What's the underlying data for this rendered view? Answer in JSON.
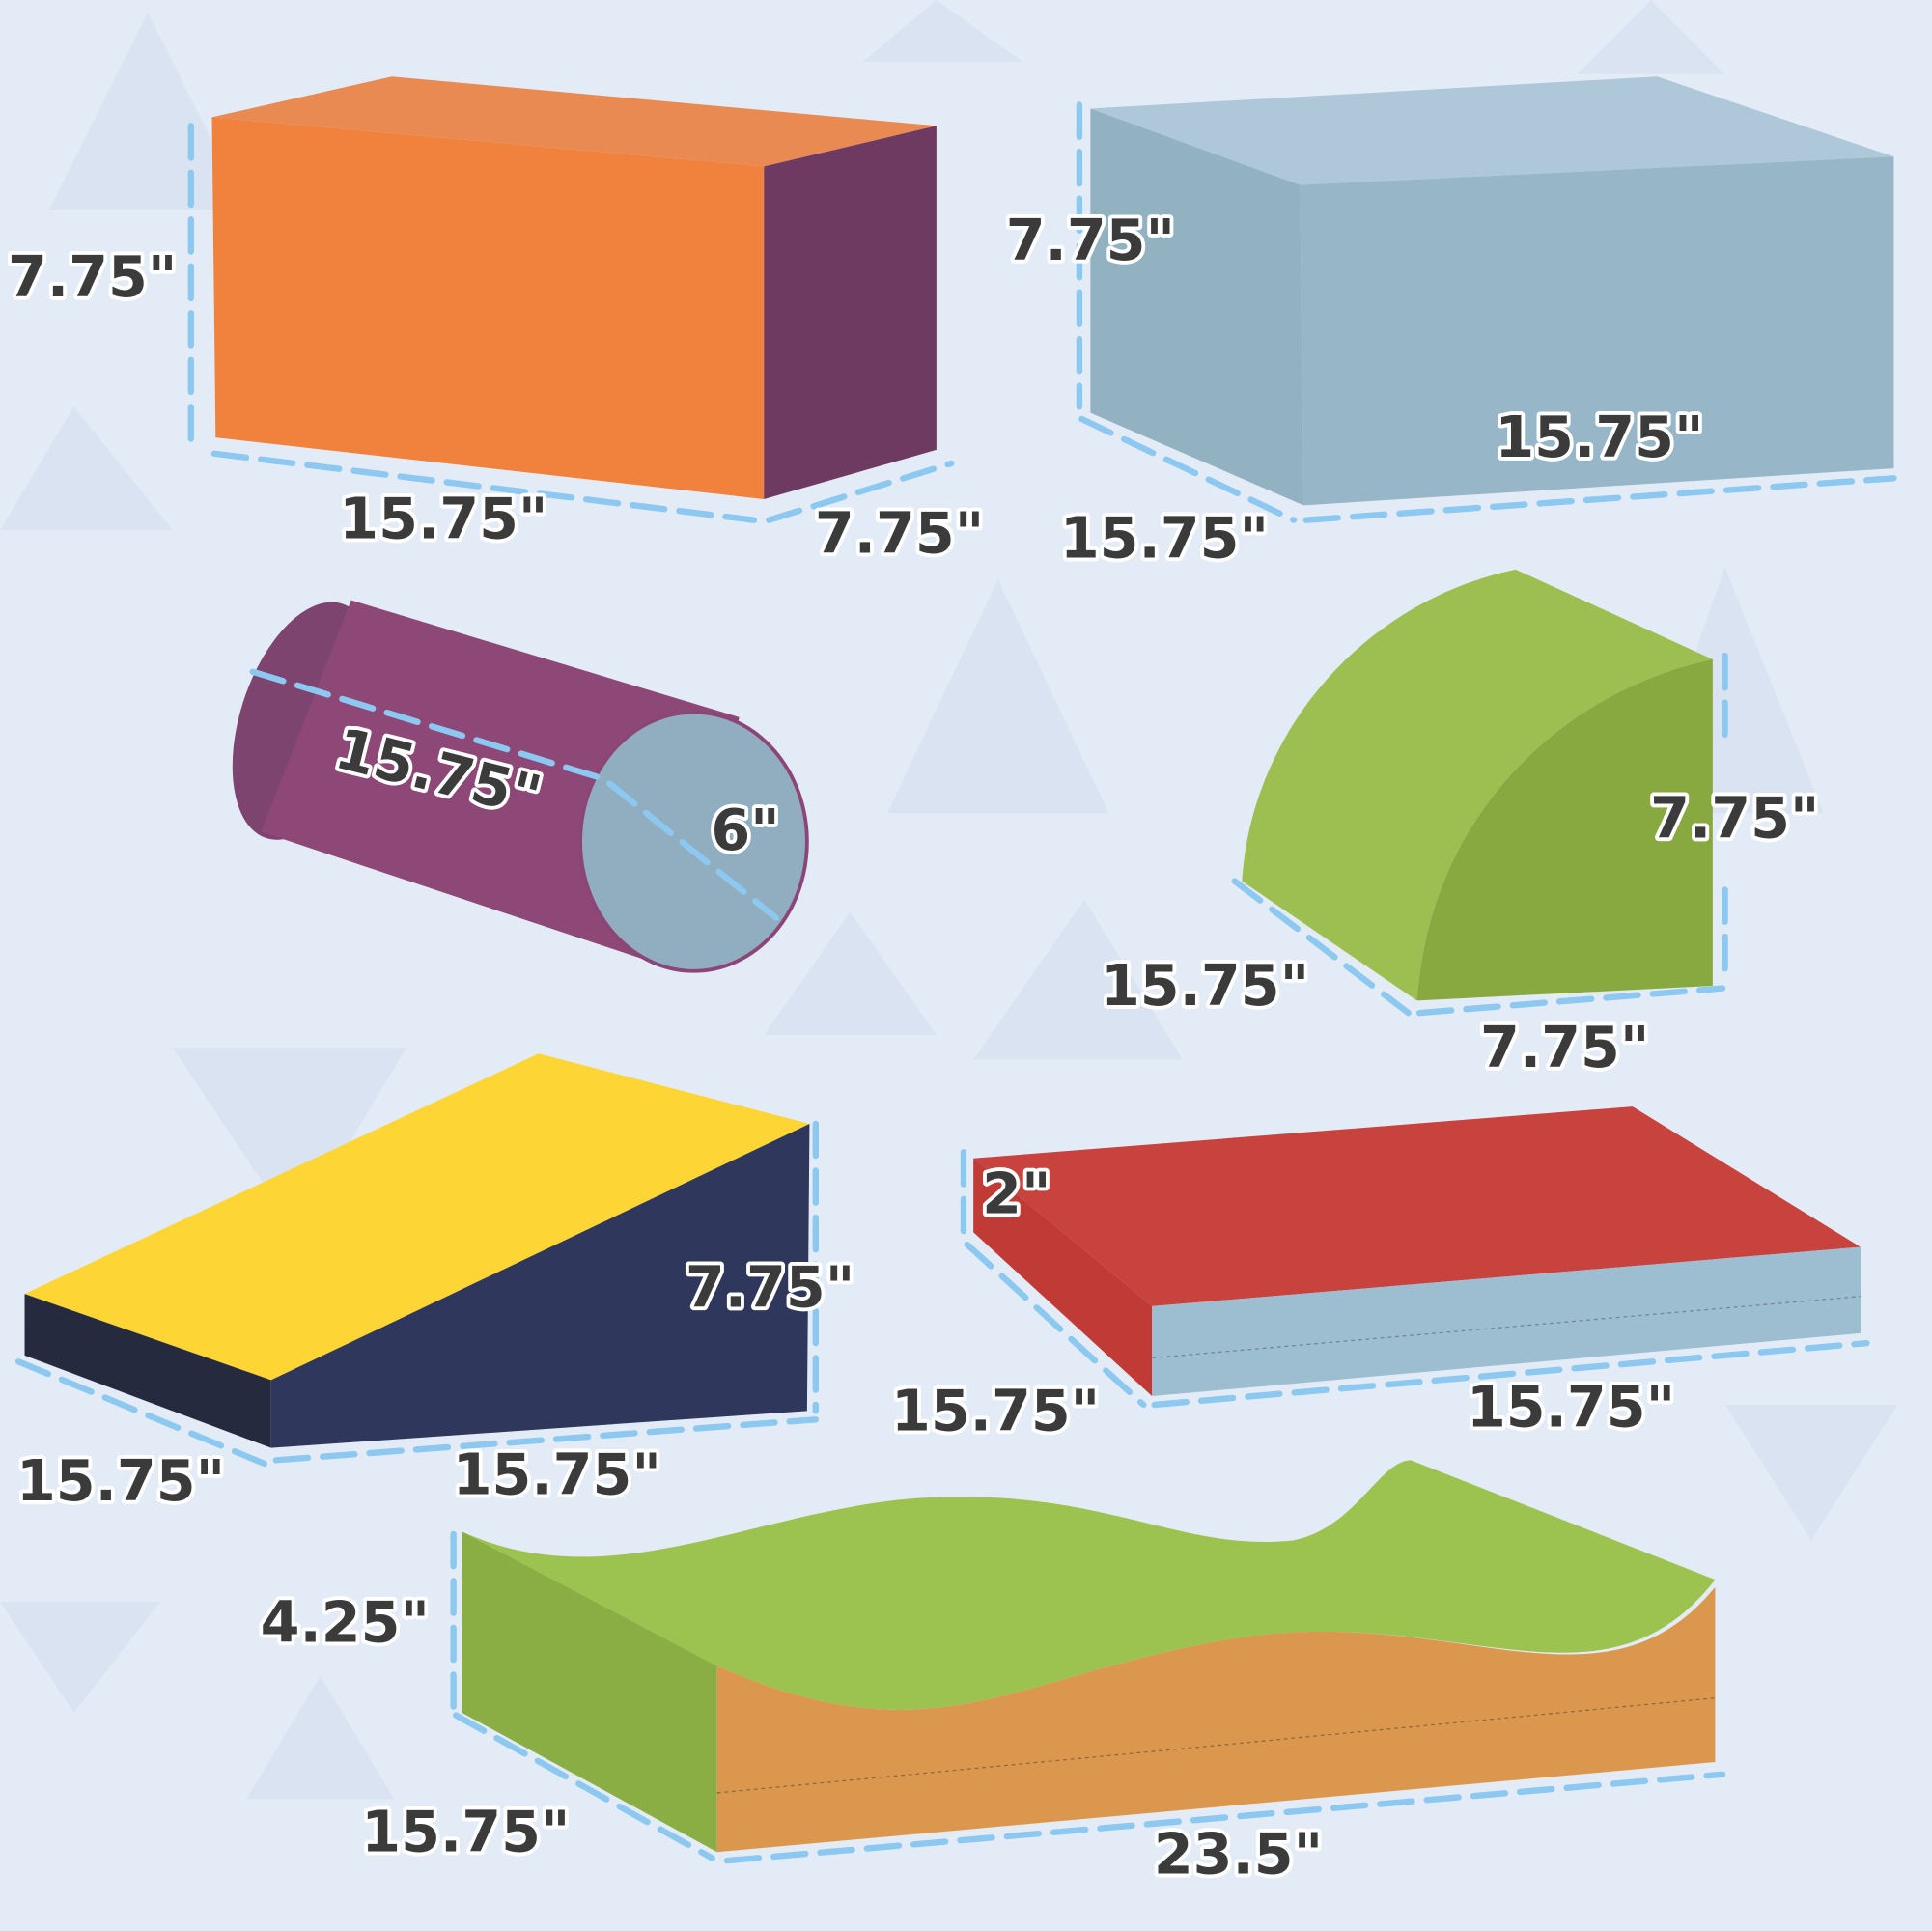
{
  "colors": {
    "background": "#e3ecf6",
    "dimension_line": "#8cc8ef",
    "label_text": "#3b3b3b"
  },
  "pieces": {
    "rectangle_block": {
      "height": "7.75\"",
      "length": "15.75\"",
      "width": "7.75\"",
      "colors": [
        "#f0823e",
        "#6e3a62"
      ]
    },
    "square_block": {
      "height": "7.75\"",
      "length": "15.75\"",
      "width": "15.75\"",
      "colors": [
        "#97b6c6"
      ]
    },
    "cylinder": {
      "length": "15.75\"",
      "diameter": "6\"",
      "colors": [
        "#8e4878",
        "#90aec0"
      ]
    },
    "quarter_round": {
      "height": "7.75\"",
      "length": "15.75\"",
      "width": "7.75\"",
      "colors": [
        "#8aab44"
      ]
    },
    "wedge": {
      "height": "7.75\"",
      "length": "15.75\"",
      "width": "15.75\"",
      "colors": [
        "#fdd535",
        "#2f375c"
      ]
    },
    "mat": {
      "height": "2\"",
      "length": "15.75\"",
      "width": "15.75\"",
      "colors": [
        "#c8423e",
        "#9dbdd0"
      ]
    },
    "wave_block": {
      "height": "4.25\"",
      "length": "15.75\"",
      "width": "23.5\"",
      "colors": [
        "#9cc250",
        "#dc974e"
      ]
    }
  }
}
